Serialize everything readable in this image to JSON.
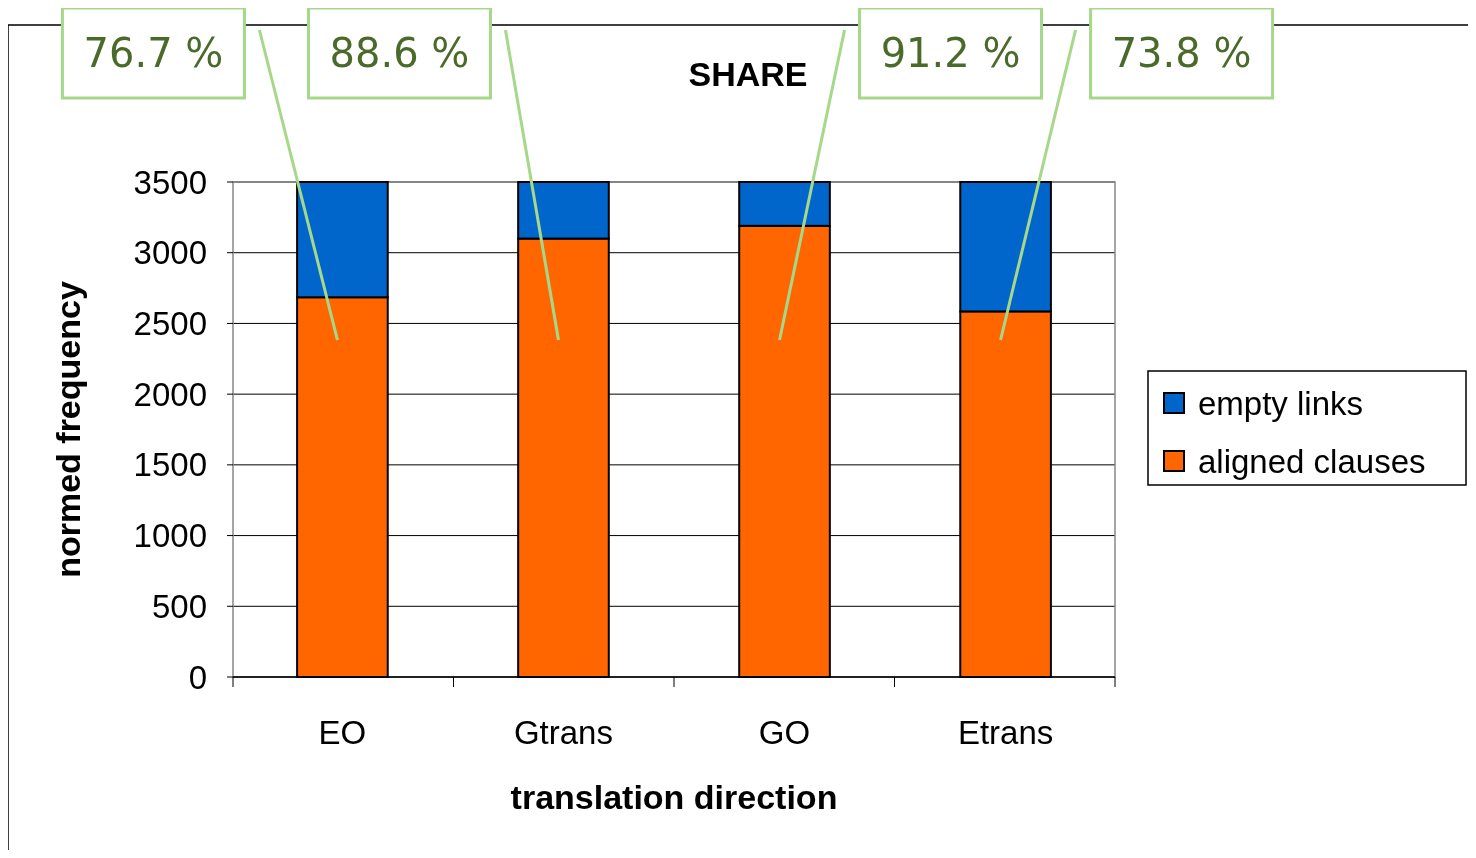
{
  "chart_data": {
    "type": "bar",
    "title": "SHARE",
    "xlabel": "translation direction",
    "ylabel": "normed frequency",
    "categories": [
      "EO",
      "Gtrans",
      "GO",
      "Etrans"
    ],
    "series": [
      {
        "name": "aligned clauses",
        "color": "#ff6600",
        "values": [
          2685,
          3100,
          3190,
          2585
        ]
      },
      {
        "name": "empty links",
        "color": "#0066cc",
        "values": [
          815,
          400,
          310,
          915
        ]
      }
    ],
    "stacked": true,
    "ylim": [
      0,
      3500
    ],
    "yticks": [
      0,
      500,
      1000,
      1500,
      2000,
      2500,
      3000,
      3500
    ],
    "grid": "y",
    "legend": "right",
    "annotations": [
      "76.7 %",
      "88.6 %",
      "91.2 %",
      "73.8 %"
    ]
  }
}
